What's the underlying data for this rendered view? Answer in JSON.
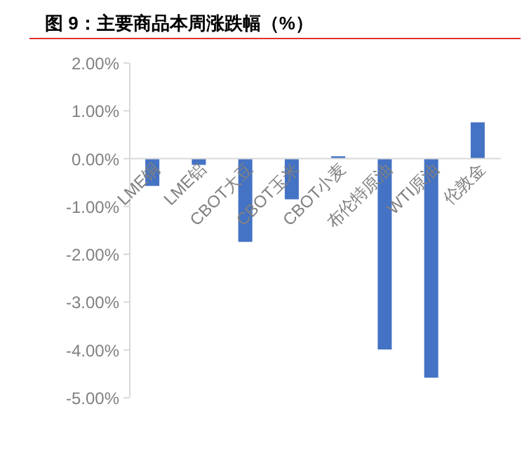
{
  "chart_data": {
    "type": "bar",
    "title": "图 9：主要商品本周涨跌幅（%）",
    "categories": [
      "LME铜",
      "LME铝",
      "CBOT大豆",
      "CBOT玉米",
      "CBOT小麦",
      "布伦特原油",
      "WTI原油",
      "伦敦金"
    ],
    "values": [
      -0.57,
      -0.13,
      -1.74,
      -0.85,
      0.05,
      -3.99,
      -4.58,
      0.76
    ],
    "color": "#4472c4",
    "ylim": [
      -5,
      2
    ],
    "yticks": [
      {
        "value": -5,
        "label": "-5.00%"
      },
      {
        "value": -4,
        "label": "-4.00%"
      },
      {
        "value": -3,
        "label": "-3.00%"
      },
      {
        "value": -2,
        "label": "-2.00%"
      },
      {
        "value": -1,
        "label": "-1.00%"
      },
      {
        "value": 0,
        "label": "0.00%"
      },
      {
        "value": 1,
        "label": "1.00%"
      },
      {
        "value": 2,
        "label": "2.00%"
      }
    ],
    "grid": false
  }
}
